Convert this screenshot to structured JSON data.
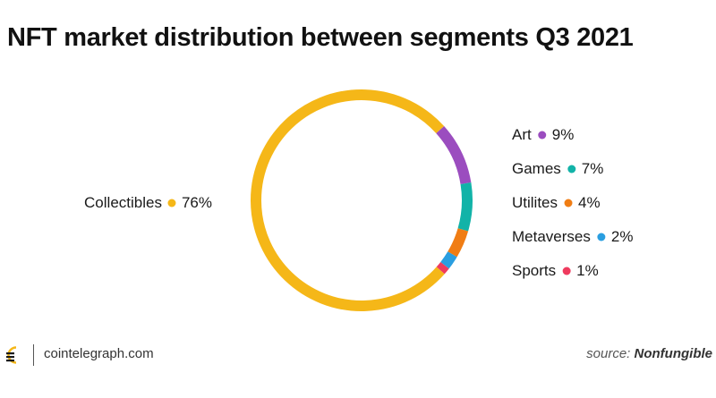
{
  "title": "NFT market distribution between segments Q3 2021",
  "chart_data": {
    "type": "pie",
    "title": "NFT market distribution between segments Q3 2021",
    "unit": "%",
    "slices": [
      {
        "label": "Art",
        "value": 9,
        "display": "9%",
        "color": "#9b4dbf"
      },
      {
        "label": "Games",
        "value": 7,
        "display": "7%",
        "color": "#12b3a8"
      },
      {
        "label": "Utilites",
        "value": 4,
        "display": "4%",
        "color": "#f07d14"
      },
      {
        "label": "Metaverses",
        "value": 2,
        "display": "2%",
        "color": "#2a9ee0"
      },
      {
        "label": "Sports",
        "value": 1,
        "display": "1%",
        "color": "#ef3b5e"
      },
      {
        "label": "Collectibles",
        "value": 76,
        "display": "76%",
        "color": "#f5b718"
      }
    ]
  },
  "footer": {
    "site": "cointelegraph.com",
    "source_prefix": "source:",
    "source_name": "Nonfungible",
    "logo_icon": "cointelegraph-logo-icon"
  }
}
